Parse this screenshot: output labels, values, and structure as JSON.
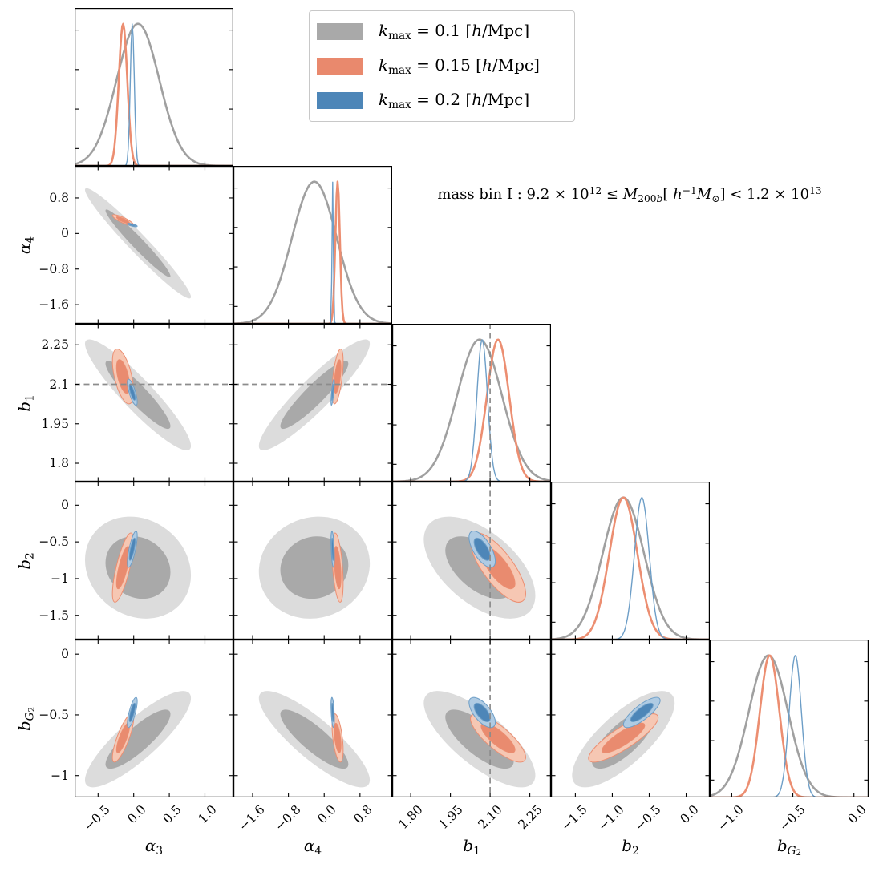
{
  "legend": {
    "border_color": "#c8c8c8",
    "items": [
      {
        "key": "kmax-0.1",
        "swatch_color": "#a9a9a9",
        "label_text": "k_max = 0.1 [h/Mpc]",
        "label_segments": [
          {
            "t": "k",
            "s": "i"
          },
          {
            "t": "max",
            "s": "sub"
          },
          {
            "t": " = 0.1 ["
          },
          {
            "t": "h",
            "s": "i"
          },
          {
            "t": "/Mpc]"
          }
        ]
      },
      {
        "key": "kmax-0.15",
        "swatch_color": "#e9896d",
        "label_text": "k_max = 0.15 [h/Mpc]",
        "label_segments": [
          {
            "t": "k",
            "s": "i"
          },
          {
            "t": "max",
            "s": "sub"
          },
          {
            "t": " = 0.15 ["
          },
          {
            "t": "h",
            "s": "i"
          },
          {
            "t": "/Mpc]"
          }
        ]
      },
      {
        "key": "kmax-0.2",
        "swatch_color": "#4d86b8",
        "label_text": "k_max = 0.2 [h/Mpc]",
        "label_segments": [
          {
            "t": "k",
            "s": "i"
          },
          {
            "t": "max",
            "s": "sub"
          },
          {
            "t": " = 0.2 ["
          },
          {
            "t": "h",
            "s": "i"
          },
          {
            "t": "/Mpc]"
          }
        ]
      }
    ]
  },
  "annotation": {
    "text": "mass bin I : 9.2 × 10^12 ≤ M_200b[ h^-1 M_sun] < 1.2 × 10^13",
    "segments": [
      {
        "t": "mass bin I : 9.2 × 10"
      },
      {
        "t": "12",
        "s": "sup"
      },
      {
        "t": " ≤ "
      },
      {
        "t": "M",
        "s": "i"
      },
      {
        "t": "200",
        "s": "sub"
      },
      {
        "t": "b",
        "s": "sub-i"
      },
      {
        "t": "[ "
      },
      {
        "t": "h",
        "s": "i"
      },
      {
        "t": "−1",
        "s": "sup"
      },
      {
        "t": "M",
        "s": "i"
      },
      {
        "t": "⊙",
        "s": "sub"
      },
      {
        "t": "] < 1.2 × 10"
      },
      {
        "t": "13",
        "s": "sup"
      }
    ]
  },
  "chart_data": {
    "type": "corner_plot_contours",
    "description": "Triangle (corner) plot of marginalized 1D posteriors on the diagonal and 2D 68%/95% confidence contours below, for three kmax analysis choices.",
    "contour_levels_sigma": [
      1.52,
      2.48
    ],
    "reference_line": {
      "param": "b1",
      "value": 2.1,
      "color": "#8c8c8c"
    },
    "parameters": [
      {
        "key": "alpha3",
        "label_text": "α3",
        "label_parts": [
          {
            "t": "α",
            "s": "i"
          },
          {
            "t": "3",
            "s": "sub"
          }
        ],
        "range": [
          -0.83,
          1.4
        ],
        "ticks": [
          -0.5,
          0.0,
          0.5,
          1.0
        ],
        "x_tick_labels": [
          "−0.5",
          "0.0",
          "0.5",
          "1.0"
        ],
        "y_ticks": null,
        "y_tick_labels": null
      },
      {
        "key": "alpha4",
        "label_text": "α4",
        "label_parts": [
          {
            "t": "α",
            "s": "i"
          },
          {
            "t": "4",
            "s": "sub"
          }
        ],
        "range": [
          -2.03,
          1.52
        ],
        "ticks": [
          -1.6,
          -0.8,
          0.0,
          0.8
        ],
        "x_tick_labels": [
          "−1.6",
          "−0.8",
          "0.0",
          "0.8"
        ],
        "y_ticks": [
          0.8,
          0.0,
          -0.8,
          -1.6
        ],
        "y_tick_labels": [
          "0.8",
          "0",
          "−0.8",
          "−1.6"
        ]
      },
      {
        "key": "b1",
        "label_text": "b1",
        "label_parts": [
          {
            "t": "b",
            "s": "i"
          },
          {
            "t": "1",
            "s": "sub"
          }
        ],
        "range": [
          1.73,
          2.33
        ],
        "ticks": [
          1.8,
          1.95,
          2.1,
          2.25
        ],
        "x_tick_labels": [
          "1.80",
          "1.95",
          "2.10",
          "2.25"
        ],
        "y_ticks": [
          2.25,
          2.1,
          1.95,
          1.8
        ],
        "y_tick_labels": [
          "2.25",
          "2.1",
          "1.95",
          "1.8"
        ]
      },
      {
        "key": "b2",
        "label_text": "b2",
        "label_parts": [
          {
            "t": "b",
            "s": "i"
          },
          {
            "t": "2",
            "s": "sub"
          }
        ],
        "range": [
          -1.83,
          0.32
        ],
        "ticks": [
          -1.5,
          -1.0,
          -0.5,
          0.0
        ],
        "x_tick_labels": [
          "−1.5",
          "−1.0",
          "−0.5",
          "0.0"
        ],
        "y_ticks": [
          0.0,
          -0.5,
          -1.0,
          -1.5
        ],
        "y_tick_labels": [
          "0",
          "−0.5",
          "−1",
          "−1.5"
        ]
      },
      {
        "key": "bG2",
        "label_text": "bG2",
        "label_parts": [
          {
            "t": "b",
            "s": "i"
          },
          {
            "t": "G",
            "s": "sub-i"
          },
          {
            "t": "2",
            "s": "subsub"
          }
        ],
        "range": [
          -1.18,
          0.12
        ],
        "ticks": [
          -1.0,
          -0.5,
          0.0
        ],
        "x_tick_labels": [
          "−1.0",
          "−0.5",
          "0.0"
        ],
        "y_ticks": [
          0.0,
          -0.5,
          -1.0
        ],
        "y_tick_labels": [
          "0",
          "−0.5",
          "−1"
        ]
      }
    ],
    "series": [
      {
        "key": "kmax-0.1",
        "label": "kmax = 0.1 [h/Mpc]",
        "line_color": "#a0a0a0",
        "line_width": 2.6,
        "contour_stroke": false,
        "fill_outer": "#dcdcdc",
        "fill_inner": "#a9a9a9",
        "means": {
          "alpha3": 0.06,
          "alpha4": -0.22,
          "b1": 2.06,
          "b2": -0.85,
          "bG2": -0.7
        },
        "sigmas": {
          "alpha3": 0.3,
          "alpha4": 0.5,
          "b1": 0.085,
          "b2": 0.28,
          "bG2": 0.16
        },
        "correlations": {
          "alpha3|alpha4": -0.97,
          "alpha3|b1": -0.92,
          "alpha3|b2": -0.15,
          "alpha3|bG2": 0.85,
          "alpha4|b1": 0.92,
          "alpha4|b2": 0.08,
          "alpha4|bG2": -0.85,
          "b1|b2": -0.55,
          "b1|bG2": -0.75,
          "b2|bG2": 0.75
        }
      },
      {
        "key": "kmax-0.15",
        "label": "kmax = 0.15 [h/Mpc]",
        "line_color": "#ec8e71",
        "line_width": 2.6,
        "contour_stroke": true,
        "fill_outer": "#f6c7b3",
        "fill_inner": "#e98b6f",
        "means": {
          "alpha3": -0.15,
          "alpha4": 0.3,
          "b1": 2.13,
          "b2": -0.85,
          "bG2": -0.69
        },
        "sigmas": {
          "alpha3": 0.06,
          "alpha4": 0.05,
          "b1": 0.042,
          "b2": 0.19,
          "bG2": 0.08
        },
        "correlations": {
          "alpha3|alpha4": -0.85,
          "alpha3|b1": -0.55,
          "alpha3|b2": 0.75,
          "alpha3|bG2": 0.8,
          "alpha4|b1": 0.55,
          "alpha4|b2": -0.45,
          "alpha4|bG2": -0.5,
          "b1|b2": -0.75,
          "b1|bG2": -0.8,
          "b2|bG2": 0.85
        }
      },
      {
        "key": "kmax-0.2",
        "label": "kmax = 0.2 [h/Mpc]",
        "line_color": "#6d9ec7",
        "line_width": 1.4,
        "contour_stroke": true,
        "fill_outer": "#afcbe3",
        "fill_inner": "#4d86b8",
        "means": {
          "alpha3": -0.02,
          "alpha4": 0.19,
          "b1": 2.07,
          "b2": -0.6,
          "bG2": -0.48
        },
        "sigmas": {
          "alpha3": 0.028,
          "alpha4": 0.015,
          "b1": 0.02,
          "b2": 0.1,
          "bG2": 0.05
        },
        "correlations": {
          "alpha3|alpha4": -0.7,
          "alpha3|b1": -0.75,
          "alpha3|b2": 0.75,
          "alpha3|bG2": 0.75,
          "alpha4|b1": 0.75,
          "alpha4|b2": -0.45,
          "alpha4|bG2": -0.45,
          "b1|b2": -0.65,
          "b1|bG2": -0.65,
          "b2|bG2": 0.8
        }
      }
    ]
  }
}
